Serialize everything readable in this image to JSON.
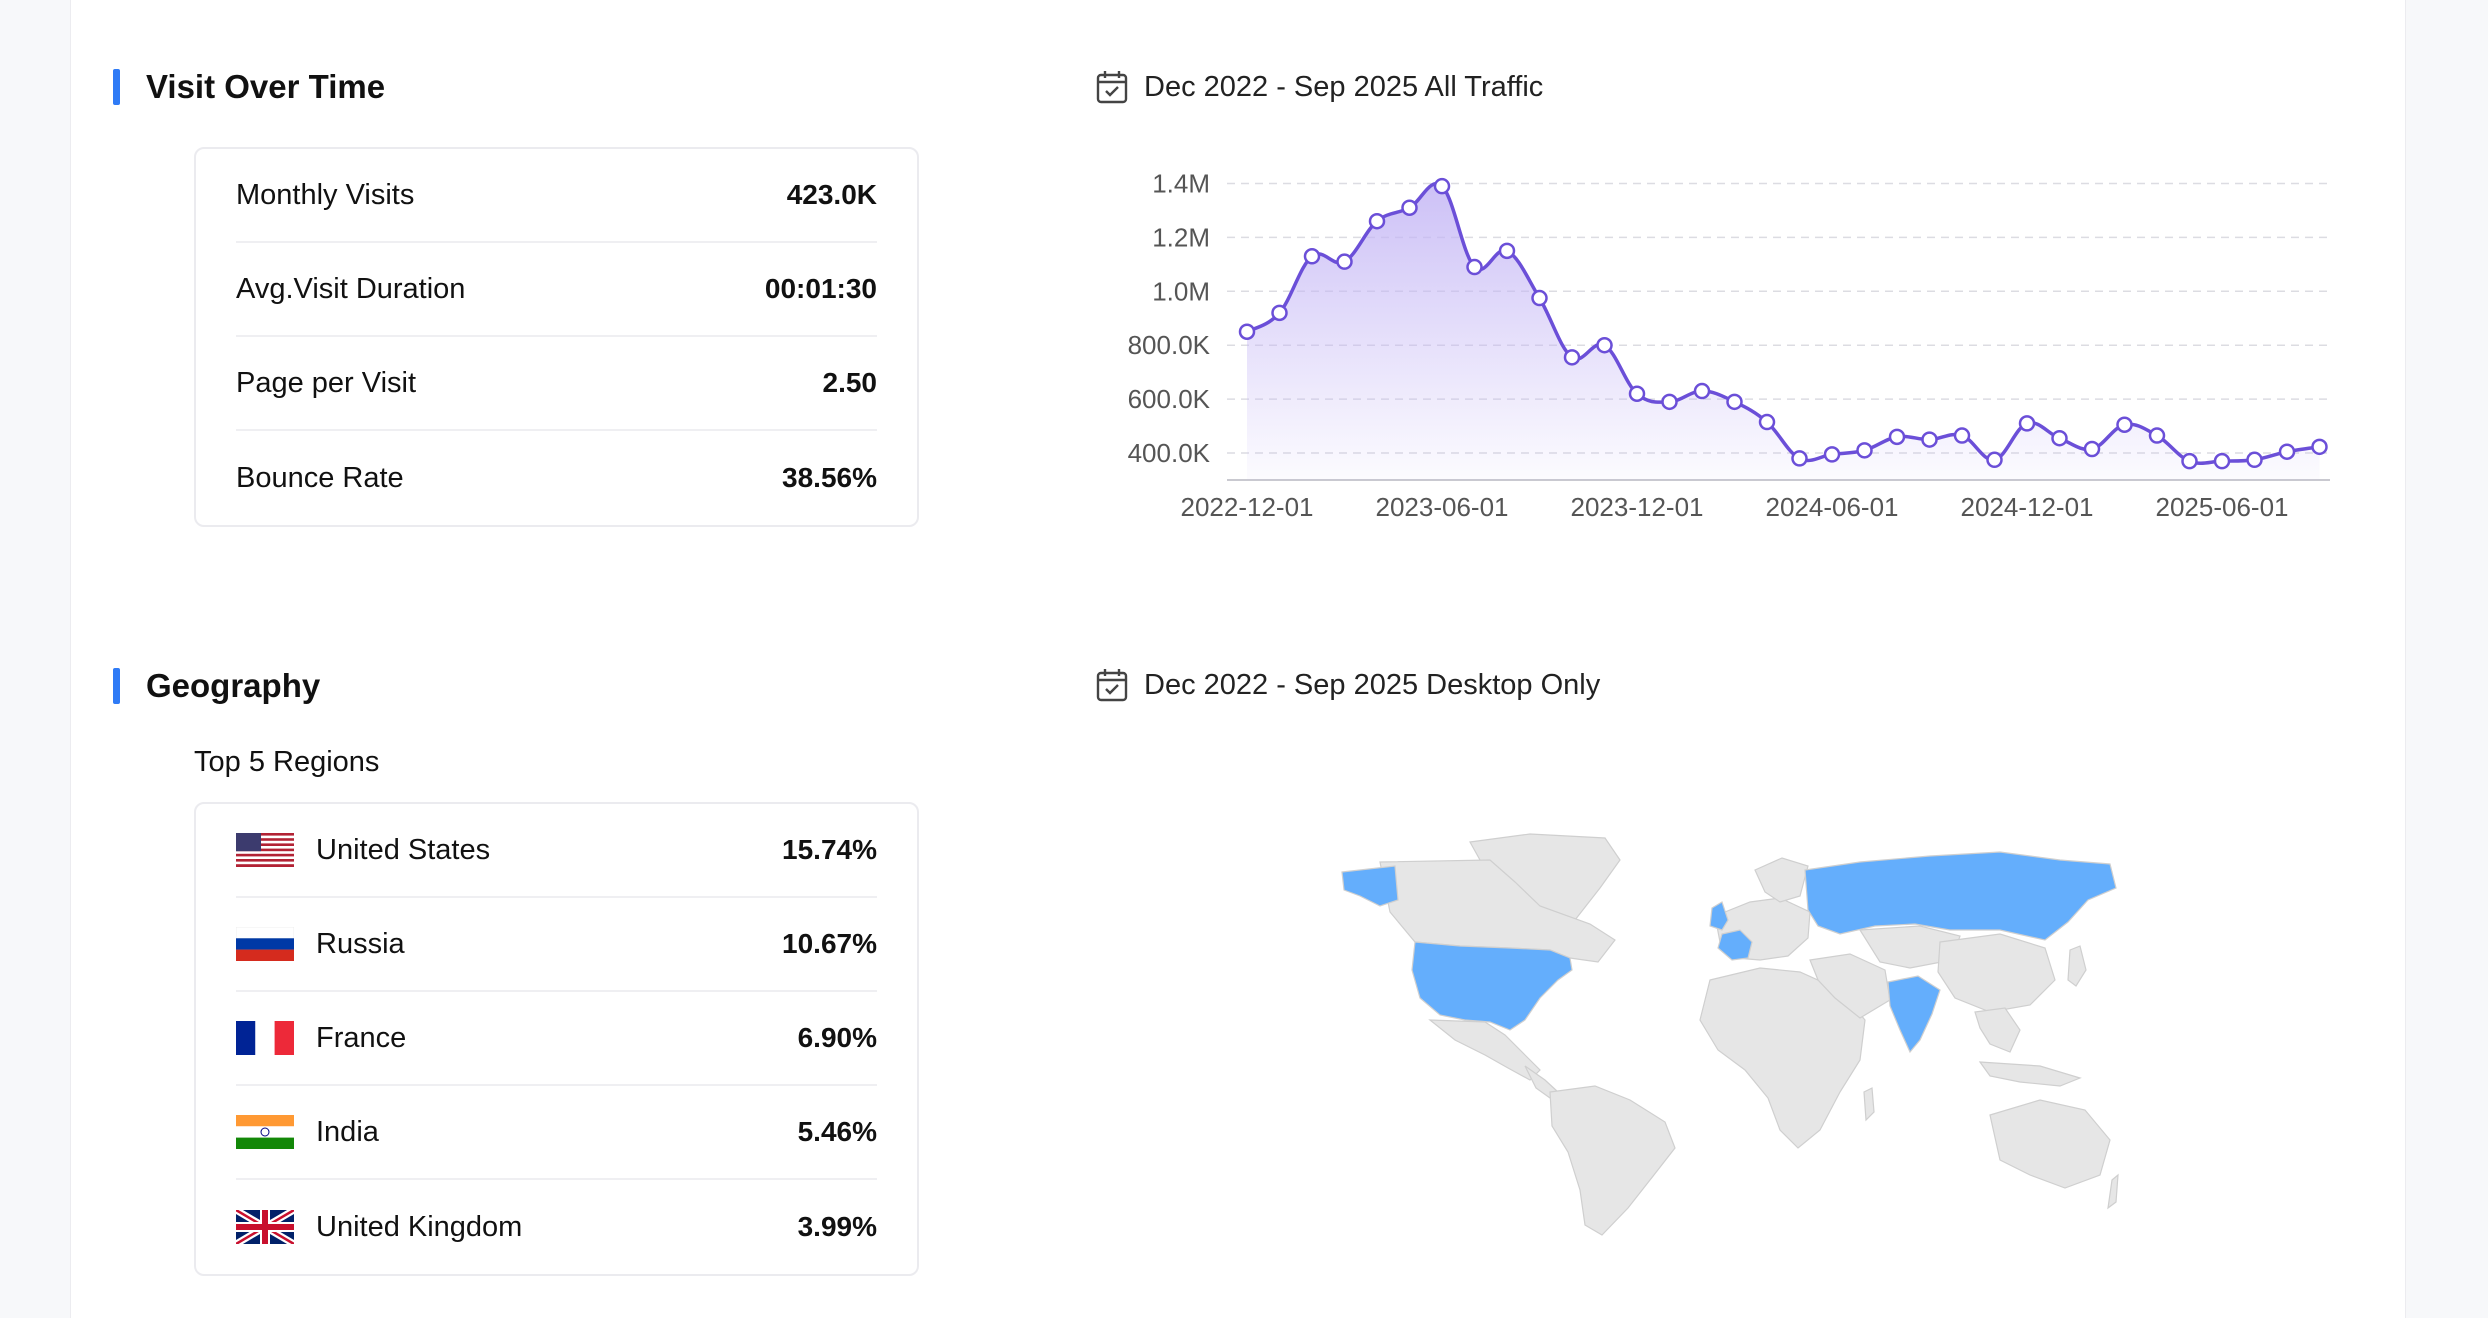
{
  "visits": {
    "title": "Visit Over Time",
    "date_range": "Dec 2022 - Sep 2025 All Traffic",
    "stats": [
      {
        "label": "Monthly Visits",
        "value": "423.0K"
      },
      {
        "label": "Avg.Visit Duration",
        "value": "00:01:30"
      },
      {
        "label": "Page per Visit",
        "value": "2.50"
      },
      {
        "label": "Bounce Rate",
        "value": "38.56%"
      }
    ]
  },
  "geography": {
    "title": "Geography",
    "date_range": "Dec 2022 - Sep 2025 Desktop Only",
    "subtitle": "Top 5 Regions",
    "regions": [
      {
        "name": "United States",
        "value": "15.74%",
        "flag": "us-flag-icon"
      },
      {
        "name": "Russia",
        "value": "10.67%",
        "flag": "russia-flag-icon"
      },
      {
        "name": "France",
        "value": "6.90%",
        "flag": "france-flag-icon"
      },
      {
        "name": "India",
        "value": "5.46%",
        "flag": "india-flag-icon"
      },
      {
        "name": "United Kingdom",
        "value": "3.99%",
        "flag": "uk-flag-icon"
      }
    ],
    "map_highlight_color": "#64aefc",
    "map_base_color": "#e6e6e6",
    "highlighted_countries": [
      "United States",
      "Russia",
      "France",
      "India",
      "United Kingdom"
    ]
  },
  "chart_data": {
    "type": "area",
    "title": "",
    "xlabel": "",
    "ylabel": "",
    "x": [
      "2022-12-01",
      "2023-01-01",
      "2023-02-01",
      "2023-03-01",
      "2023-04-01",
      "2023-05-01",
      "2023-06-01",
      "2023-07-01",
      "2023-08-01",
      "2023-09-01",
      "2023-10-01",
      "2023-11-01",
      "2023-12-01",
      "2024-01-01",
      "2024-02-01",
      "2024-03-01",
      "2024-04-01",
      "2024-05-01",
      "2024-06-01",
      "2024-07-01",
      "2024-08-01",
      "2024-09-01",
      "2024-10-01",
      "2024-11-01",
      "2024-12-01",
      "2025-01-01",
      "2025-02-01",
      "2025-03-01",
      "2025-04-01",
      "2025-05-01",
      "2025-06-01",
      "2025-07-01",
      "2025-08-01",
      "2025-09-01"
    ],
    "values": [
      850000,
      920000,
      1130000,
      1110000,
      1260000,
      1310000,
      1390000,
      1090000,
      1150000,
      975000,
      755000,
      800000,
      620000,
      590000,
      630000,
      590000,
      515000,
      380000,
      395000,
      410000,
      460000,
      450000,
      465000,
      375000,
      510000,
      455000,
      415000,
      505000,
      465000,
      370000,
      370000,
      375000,
      405000,
      423000
    ],
    "x_ticks": [
      "2022-12-01",
      "2023-06-01",
      "2023-12-01",
      "2024-06-01",
      "2024-12-01",
      "2025-06-01"
    ],
    "y_ticks": [
      "400.0K",
      "600.0K",
      "800.0K",
      "1.0M",
      "1.2M",
      "1.4M"
    ],
    "y_tick_values": [
      400000,
      600000,
      800000,
      1000000,
      1200000,
      1400000
    ],
    "ylim": [
      300000,
      1450000
    ],
    "line_color": "#6b4fd8",
    "fill_color": "#c4b6f5",
    "grid": "horizontal dashed"
  }
}
